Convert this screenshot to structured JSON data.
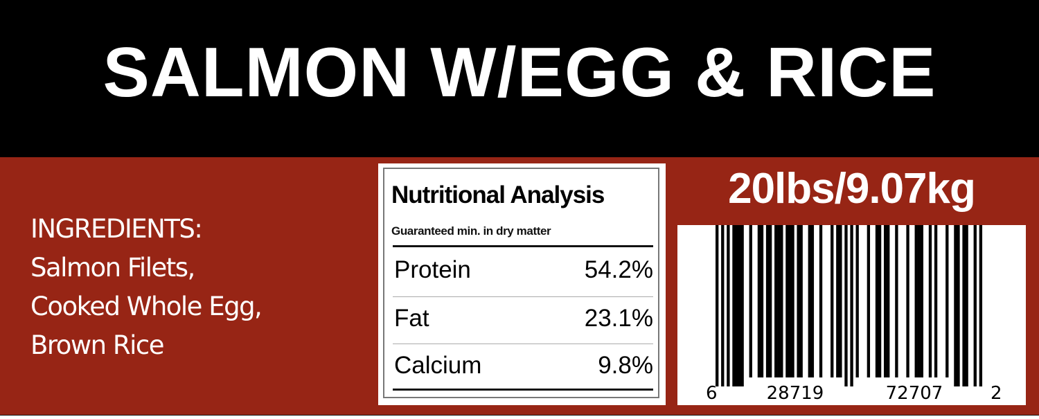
{
  "title": "SALMON W/EGG & RICE",
  "colors": {
    "band": "#972515",
    "header": "#000000",
    "text": "#ffffff"
  },
  "ingredients": {
    "heading": "INGREDIENTS:",
    "lines": [
      "Salmon Filets,",
      "Cooked Whole Egg,",
      "Brown Rice"
    ]
  },
  "nutrition": {
    "title": "Nutritional Analysis",
    "subtitle": "Guaranteed min. in dry matter",
    "rows": [
      {
        "label": "Protein",
        "value": "54.2%"
      },
      {
        "label": "Fat",
        "value": "23.1%"
      },
      {
        "label": "Calcium",
        "value": "9.8%"
      }
    ]
  },
  "weight": "20lbs/9.07kg",
  "barcode": {
    "type": "UPC-A",
    "digits": "628719727072",
    "groups": [
      "6",
      "28719",
      "72707",
      "2"
    ]
  }
}
